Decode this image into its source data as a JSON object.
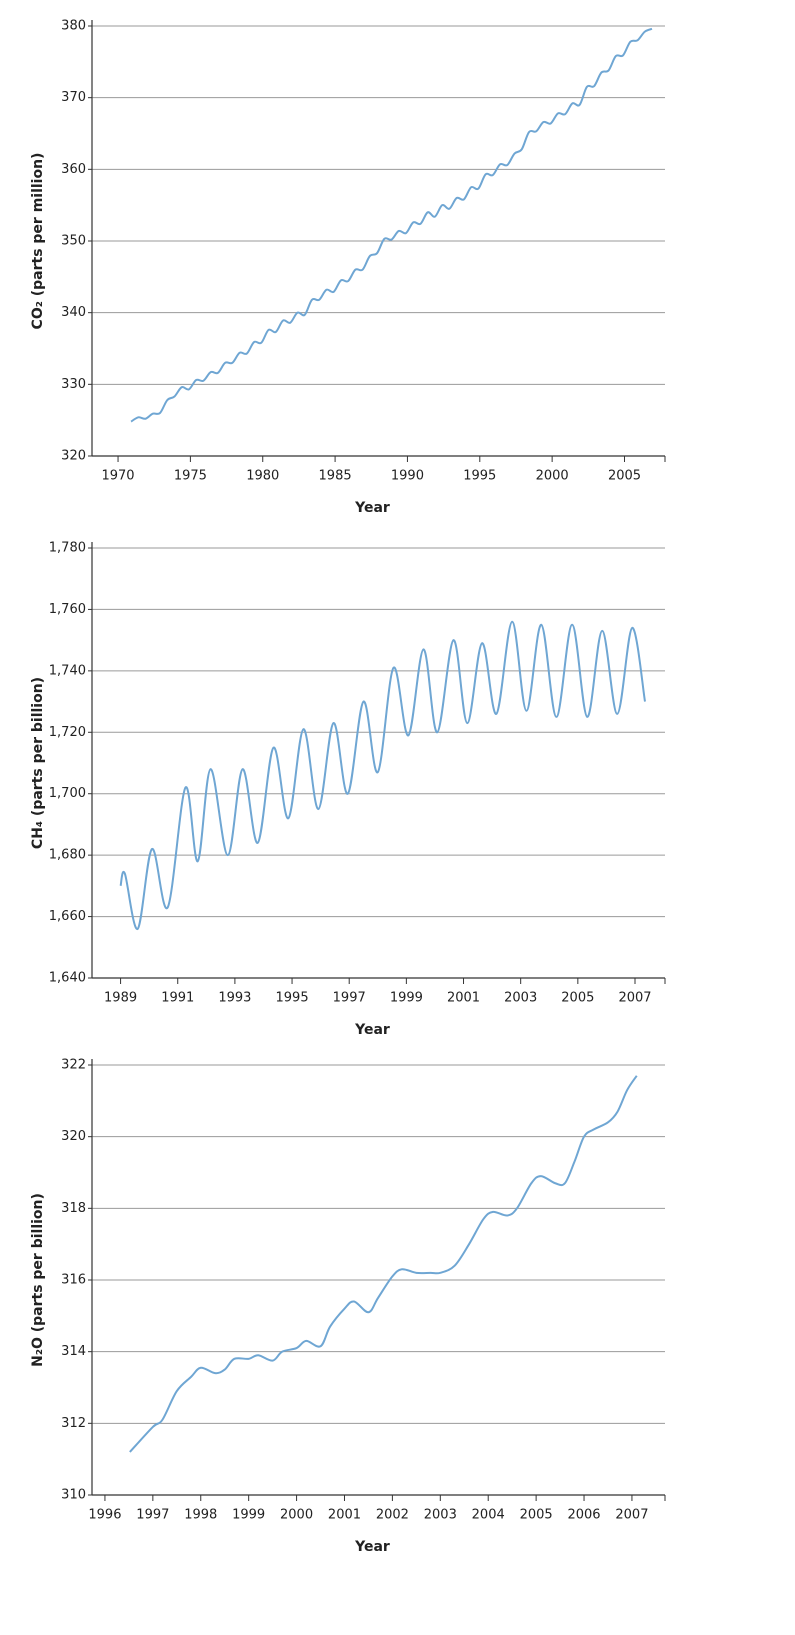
{
  "chart_data": [
    {
      "type": "line",
      "x_label": "Year",
      "y_label": "CO₂ (parts per million)",
      "color": "#6fa6d3",
      "grid": true,
      "xlim": [
        1968.2,
        2007.8
      ],
      "xticks": [
        1970,
        1975,
        1980,
        1985,
        1990,
        1995,
        2000,
        2005
      ],
      "ylim": [
        320,
        380
      ],
      "yticks": [
        320,
        330,
        340,
        350,
        360,
        370,
        380
      ],
      "x": [
        1970.9,
        1971.4,
        1971.9,
        1972.4,
        1972.9,
        1973.4,
        1973.9,
        1974.4,
        1974.9,
        1975.4,
        1975.9,
        1976.4,
        1976.9,
        1977.4,
        1977.9,
        1978.4,
        1978.9,
        1979.4,
        1979.9,
        1980.4,
        1980.9,
        1981.4,
        1981.9,
        1982.4,
        1982.9,
        1983.4,
        1983.9,
        1984.4,
        1984.9,
        1985.4,
        1985.9,
        1986.4,
        1986.9,
        1987.4,
        1987.9,
        1988.4,
        1988.9,
        1989.4,
        1989.9,
        1990.4,
        1990.9,
        1991.4,
        1991.9,
        1992.4,
        1992.9,
        1993.4,
        1993.9,
        1994.4,
        1994.9,
        1995.4,
        1995.9,
        1996.4,
        1996.9,
        1997.4,
        1997.9,
        1998.4,
        1998.9,
        1999.4,
        1999.9,
        2000.4,
        2000.9,
        2001.4,
        2001.9,
        2002.4,
        2002.9,
        2003.4,
        2003.9,
        2004.4,
        2004.9,
        2005.4,
        2005.9,
        2006.4,
        2006.9
      ],
      "values": [
        324.8,
        325.4,
        325.2,
        325.9,
        326.0,
        327.8,
        328.3,
        329.6,
        329.3,
        330.6,
        330.5,
        331.7,
        331.6,
        333.0,
        333.0,
        334.4,
        334.3,
        335.9,
        335.8,
        337.6,
        337.3,
        338.9,
        338.6,
        340.0,
        339.7,
        341.8,
        341.8,
        343.2,
        342.9,
        344.5,
        344.4,
        346.0,
        346.0,
        347.9,
        348.3,
        350.3,
        350.2,
        351.4,
        351.1,
        352.6,
        352.4,
        354.0,
        353.4,
        355.0,
        354.5,
        356.0,
        355.8,
        357.5,
        357.3,
        359.3,
        359.2,
        360.7,
        360.6,
        362.2,
        362.8,
        365.2,
        365.3,
        366.6,
        366.4,
        367.8,
        367.7,
        369.2,
        369.0,
        371.5,
        371.6,
        373.5,
        373.8,
        375.8,
        375.9,
        377.8,
        378.0,
        379.2,
        379.6
      ]
    },
    {
      "type": "line",
      "x_label": "Year",
      "y_label": "CH₄ (parts per billion)",
      "color": "#6fa6d3",
      "grid": true,
      "xlim": [
        1988.0,
        2008.05
      ],
      "xticks": [
        1989,
        1991,
        1993,
        1995,
        1997,
        1999,
        2001,
        2003,
        2005,
        2007
      ],
      "ylim": [
        1640,
        1780
      ],
      "yticks": [
        {
          "value": 1640,
          "label": "1,640"
        },
        {
          "value": 1660,
          "label": "1,660"
        },
        {
          "value": 1680,
          "label": "1,680"
        },
        {
          "value": 1700,
          "label": "1,700"
        },
        {
          "value": 1720,
          "label": "1,720"
        },
        {
          "value": 1740,
          "label": "1,740"
        },
        {
          "value": 1760,
          "label": "1,760"
        },
        {
          "value": 1780,
          "label": "1,780"
        }
      ],
      "x": [
        1989.0,
        1989.15,
        1989.6,
        1990.1,
        1990.65,
        1991.27,
        1991.7,
        1992.15,
        1992.75,
        1993.27,
        1993.8,
        1994.35,
        1994.87,
        1995.4,
        1995.92,
        1996.45,
        1996.95,
        1997.5,
        1998.0,
        1998.55,
        1999.07,
        1999.6,
        2000.08,
        2000.65,
        2001.13,
        2001.65,
        2002.15,
        2002.7,
        2003.2,
        2003.72,
        2004.25,
        2004.8,
        2005.33,
        2005.85,
        2006.38,
        2006.9,
        2007.35
      ],
      "values": [
        1670,
        1674,
        1656,
        1682,
        1663,
        1702,
        1678,
        1708,
        1680,
        1708,
        1684,
        1715,
        1692,
        1721,
        1695,
        1723,
        1700,
        1730,
        1707,
        1741,
        1719,
        1747,
        1720,
        1750,
        1723,
        1749,
        1726,
        1756,
        1727,
        1755,
        1725,
        1755,
        1725,
        1753,
        1726,
        1754,
        1730
      ]
    },
    {
      "type": "line",
      "x_label": "Year",
      "y_label": "N₂O (parts per billion)",
      "color": "#6fa6d3",
      "grid": true,
      "xlim": [
        1995.73,
        2007.69
      ],
      "xticks": [
        1996,
        1997,
        1998,
        1999,
        2000,
        2001,
        2002,
        2003,
        2004,
        2005,
        2006,
        2007
      ],
      "ylim": [
        310,
        322
      ],
      "yticks": [
        310,
        312,
        314,
        316,
        318,
        320,
        322
      ],
      "x": [
        1996.52,
        1997.0,
        1997.2,
        1997.5,
        1997.8,
        1998.0,
        1998.3,
        1998.5,
        1998.7,
        1999.0,
        1999.2,
        1999.5,
        1999.7,
        2000.0,
        2000.2,
        2000.5,
        2000.7,
        2001.0,
        2001.2,
        2001.5,
        2001.7,
        2002.0,
        2002.2,
        2002.5,
        2002.8,
        2003.0,
        2003.3,
        2003.6,
        2003.9,
        2004.1,
        2004.4,
        2004.6,
        2004.9,
        2005.1,
        2005.4,
        2005.6,
        2005.8,
        2006.0,
        2006.2,
        2006.5,
        2006.7,
        2006.9,
        2007.1
      ],
      "values": [
        311.2,
        311.9,
        312.1,
        312.9,
        313.3,
        313.55,
        313.4,
        313.5,
        313.8,
        313.8,
        313.9,
        313.75,
        314.0,
        314.1,
        314.3,
        314.15,
        314.7,
        315.2,
        315.4,
        315.1,
        315.5,
        316.1,
        316.3,
        316.2,
        316.2,
        316.2,
        316.4,
        317.0,
        317.7,
        317.9,
        317.8,
        318.0,
        318.7,
        318.9,
        318.7,
        318.7,
        319.3,
        320.0,
        320.2,
        320.4,
        320.7,
        321.3,
        321.7
      ]
    }
  ]
}
